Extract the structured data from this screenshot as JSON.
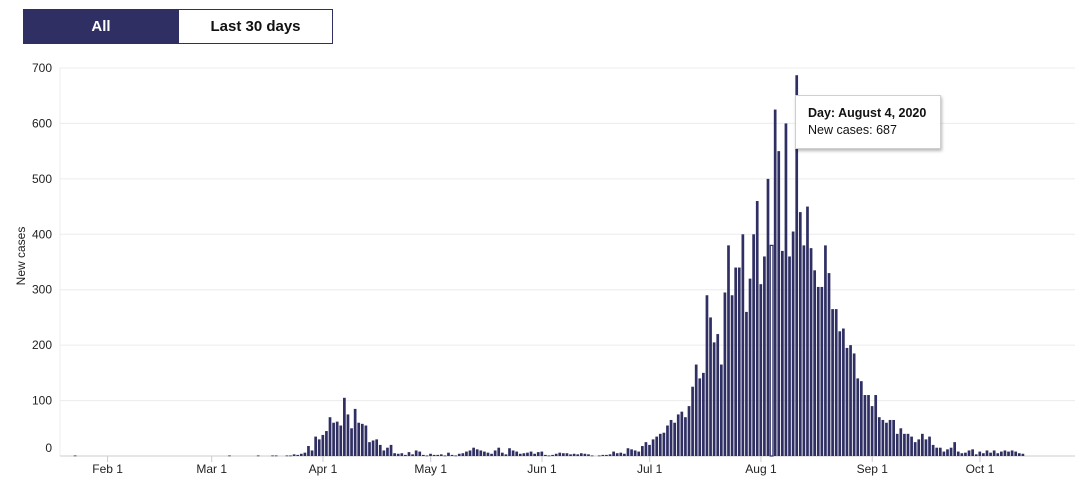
{
  "toggle": {
    "all_label": "All",
    "last30_label": "Last 30 days",
    "selected": "All"
  },
  "tooltip": {
    "day_prefix": "Day:",
    "day_value": "August 4, 2020",
    "cases_prefix": "New cases:",
    "cases_value": "687"
  },
  "colors": {
    "bar": "#2f2f63",
    "accent": "#2f2f63",
    "highlight_bar": "#ffffff"
  },
  "chart_data": {
    "type": "bar",
    "title": "",
    "xlabel": "",
    "ylabel": "New cases",
    "ylim": [
      0,
      700
    ],
    "yticks": [
      0,
      100,
      200,
      300,
      400,
      500,
      600,
      700
    ],
    "grid": true,
    "x_start": "2020-01-20",
    "xtick_labels": [
      {
        "label": "Feb 1",
        "date": "2020-02-01"
      },
      {
        "label": "Mar 1",
        "date": "2020-03-01"
      },
      {
        "label": "Apr 1",
        "date": "2020-04-01"
      },
      {
        "label": "May 1",
        "date": "2020-05-01"
      },
      {
        "label": "Jun 1",
        "date": "2020-06-01"
      },
      {
        "label": "Jul 1",
        "date": "2020-07-01"
      },
      {
        "label": "Aug 1",
        "date": "2020-08-01"
      },
      {
        "label": "Sep 1",
        "date": "2020-09-01"
      },
      {
        "label": "Oct 1",
        "date": "2020-10-01"
      }
    ],
    "highlight": {
      "date": "2020-08-04",
      "value": 687
    },
    "values": [
      0,
      0,
      0,
      1,
      0,
      0,
      0,
      0,
      0,
      0,
      0,
      0,
      0,
      0,
      0,
      0,
      0,
      0,
      0,
      0,
      0,
      0,
      0,
      0,
      0,
      0,
      0,
      0,
      0,
      0,
      0,
      0,
      0,
      0,
      0,
      0,
      0,
      0,
      0,
      0,
      0,
      0,
      0,
      0,
      0,
      0,
      1,
      0,
      0,
      0,
      0,
      0,
      0,
      0,
      1,
      0,
      0,
      0,
      1,
      1,
      0,
      0,
      1,
      1,
      3,
      2,
      4,
      6,
      18,
      10,
      35,
      30,
      38,
      45,
      70,
      60,
      62,
      55,
      105,
      75,
      50,
      85,
      60,
      58,
      55,
      25,
      28,
      30,
      20,
      10,
      15,
      20,
      5,
      4,
      5,
      2,
      7,
      3,
      10,
      8,
      2,
      1,
      4,
      2,
      2,
      3,
      1,
      6,
      2,
      1,
      4,
      5,
      8,
      10,
      15,
      12,
      10,
      8,
      6,
      4,
      10,
      15,
      6,
      3,
      14,
      10,
      8,
      4,
      5,
      6,
      8,
      4,
      7,
      8,
      2,
      1,
      2,
      4,
      6,
      5,
      5,
      3,
      4,
      3,
      5,
      4,
      3,
      1,
      0,
      1,
      2,
      2,
      3,
      8,
      5,
      6,
      4,
      14,
      12,
      10,
      8,
      18,
      25,
      20,
      30,
      35,
      40,
      42,
      55,
      65,
      60,
      75,
      80,
      70,
      90,
      125,
      165,
      140,
      150,
      290,
      250,
      205,
      220,
      165,
      295,
      380,
      290,
      340,
      340,
      400,
      260,
      320,
      400,
      460,
      310,
      360,
      500,
      380,
      625,
      550,
      370,
      600,
      360,
      405,
      687,
      440,
      380,
      450,
      375,
      335,
      305,
      305,
      380,
      330,
      265,
      265,
      225,
      230,
      195,
      200,
      185,
      140,
      135,
      110,
      110,
      90,
      110,
      70,
      65,
      60,
      65,
      65,
      40,
      50,
      40,
      40,
      35,
      25,
      30,
      40,
      30,
      35,
      20,
      15,
      15,
      8,
      12,
      15,
      25,
      8,
      5,
      6,
      10,
      12,
      3,
      8,
      5,
      10,
      6,
      10,
      5,
      8,
      10,
      8,
      10,
      8,
      5,
      4
    ]
  }
}
